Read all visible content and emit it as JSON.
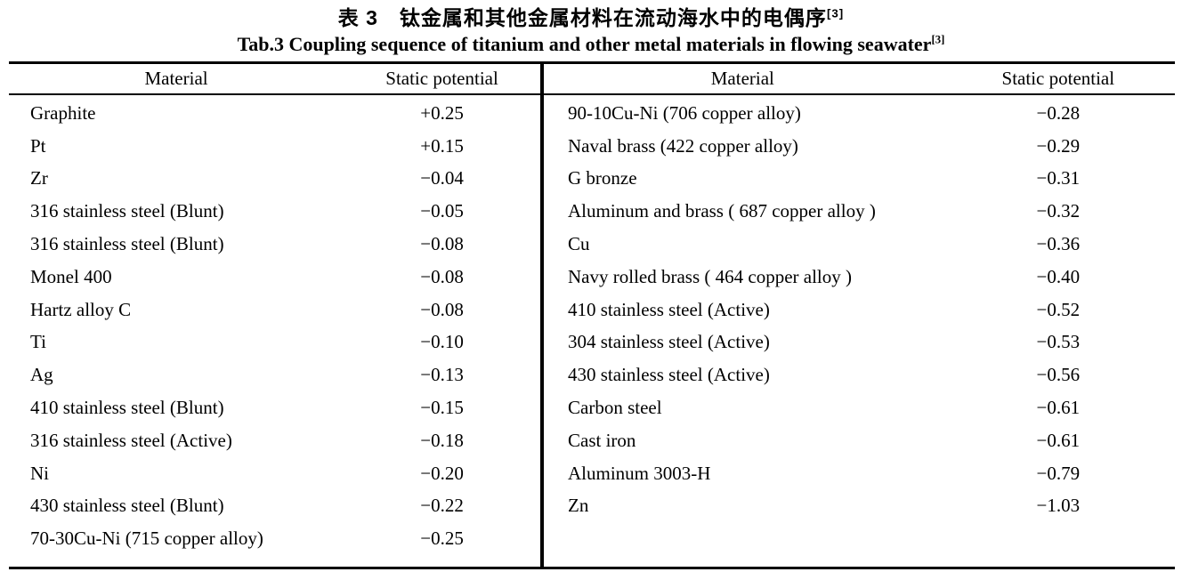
{
  "titles": {
    "chinese": "表 3　钛金属和其他金属材料在流动海水中的电偶序",
    "chinese_ref": "[3]",
    "english": "Tab.3 Coupling sequence of titanium and other metal materials in flowing seawater",
    "english_ref": "[3]"
  },
  "headers": {
    "material": "Material",
    "static_potential": "Static potential"
  },
  "table": {
    "left_rows": [
      {
        "material": "Graphite",
        "potential": "+0.25"
      },
      {
        "material": "Pt",
        "potential": "+0.15"
      },
      {
        "material": "Zr",
        "potential": "−0.04"
      },
      {
        "material": "316 stainless steel (Blunt)",
        "potential": "−0.05"
      },
      {
        "material": "316 stainless steel (Blunt)",
        "potential": "−0.08"
      },
      {
        "material": "Monel 400",
        "potential": "−0.08"
      },
      {
        "material": "Hartz alloy C",
        "potential": "−0.08"
      },
      {
        "material": "Ti",
        "potential": "−0.10"
      },
      {
        "material": "Ag",
        "potential": "−0.13"
      },
      {
        "material": "410 stainless steel (Blunt)",
        "potential": "−0.15"
      },
      {
        "material": "316 stainless steel (Active)",
        "potential": "−0.18"
      },
      {
        "material": "Ni",
        "potential": "−0.20"
      },
      {
        "material": "430 stainless steel (Blunt)",
        "potential": "−0.22"
      },
      {
        "material": "70-30Cu-Ni (715 copper alloy)",
        "potential": "−0.25"
      }
    ],
    "right_rows": [
      {
        "material": "90-10Cu-Ni (706 copper alloy)",
        "potential": "−0.28"
      },
      {
        "material": "Naval brass (422 copper alloy)",
        "potential": "−0.29"
      },
      {
        "material": "G bronze",
        "potential": "−0.31"
      },
      {
        "material": "Aluminum and brass ( 687 copper alloy )",
        "potential": "−0.32"
      },
      {
        "material": "Cu",
        "potential": "−0.36"
      },
      {
        "material": "Navy rolled brass ( 464 copper alloy )",
        "potential": "−0.40"
      },
      {
        "material": "410 stainless steel (Active)",
        "potential": "−0.52"
      },
      {
        "material": "304 stainless steel (Active)",
        "potential": "−0.53"
      },
      {
        "material": "430 stainless steel (Active)",
        "potential": "−0.56"
      },
      {
        "material": "Carbon steel",
        "potential": "−0.61"
      },
      {
        "material": "Cast iron",
        "potential": "−0.61"
      },
      {
        "material": "Aluminum 3003-H",
        "potential": "−0.79"
      },
      {
        "material": "Zn",
        "potential": "−1.03"
      }
    ]
  },
  "colors": {
    "text": "#000000",
    "background": "#ffffff",
    "rule": "#000000"
  }
}
